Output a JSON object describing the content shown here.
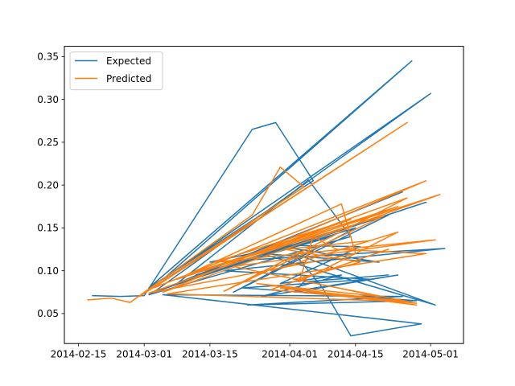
{
  "chart_data": {
    "type": "line",
    "title": "",
    "xlabel": "",
    "ylabel": "",
    "x_axis_type": "date",
    "xlim": [
      "2014-02-12",
      "2014-05-08"
    ],
    "ylim": [
      0.015,
      0.362
    ],
    "x_ticks": [
      "2014-02-15",
      "2014-03-01",
      "2014-03-15",
      "2014-04-01",
      "2014-04-15",
      "2014-05-01"
    ],
    "y_ticks": [
      0.05,
      0.1,
      0.15,
      0.2,
      0.25,
      0.3,
      0.35
    ],
    "y_tick_labels": [
      "0.05",
      "0.10",
      "0.15",
      "0.20",
      "0.25",
      "0.30",
      "0.35"
    ],
    "grid": false,
    "legend": {
      "position": "upper-left"
    },
    "series": [
      {
        "name": "Expected",
        "color": "#1f77b4",
        "points": [
          [
            "2014-02-18",
            0.071
          ],
          [
            "2014-02-24",
            0.07
          ],
          [
            "2014-03-01",
            0.071
          ],
          [
            "2014-03-24",
            0.265
          ],
          [
            "2014-03-29",
            0.273
          ],
          [
            "2014-04-06",
            0.205
          ],
          [
            "2014-03-02",
            0.08
          ],
          [
            "2014-04-27",
            0.345
          ],
          [
            "2014-03-05",
            0.09
          ],
          [
            "2014-05-01",
            0.307
          ],
          [
            "2014-03-03",
            0.075
          ],
          [
            "2014-04-30",
            0.18
          ],
          [
            "2014-03-08",
            0.085
          ],
          [
            "2014-04-05",
            0.206
          ],
          [
            "2014-04-14",
            0.14
          ],
          [
            "2014-03-02",
            0.072
          ],
          [
            "2014-04-25",
            0.192
          ],
          [
            "2014-03-10",
            0.09
          ],
          [
            "2014-04-15",
            0.15
          ],
          [
            "2014-03-20",
            0.075
          ],
          [
            "2014-04-22",
            0.165
          ],
          [
            "2014-03-12",
            0.095
          ],
          [
            "2014-04-10",
            0.14
          ],
          [
            "2014-03-15",
            0.11
          ],
          [
            "2014-05-04",
            0.126
          ],
          [
            "2014-03-18",
            0.1
          ],
          [
            "2014-04-18",
            0.09
          ],
          [
            "2014-03-22",
            0.08
          ],
          [
            "2014-04-28",
            0.065
          ],
          [
            "2014-03-23",
            0.06
          ],
          [
            "2014-04-25",
            0.07
          ],
          [
            "2014-03-05",
            0.072
          ],
          [
            "2014-04-29",
            0.038
          ],
          [
            "2014-04-14",
            0.024
          ],
          [
            "2014-04-08",
            0.08
          ],
          [
            "2014-04-02",
            0.12
          ],
          [
            "2014-05-02",
            0.06
          ],
          [
            "2014-03-26",
            0.12
          ],
          [
            "2014-04-20",
            0.11
          ],
          [
            "2014-03-28",
            0.13
          ],
          [
            "2014-04-16",
            0.128
          ],
          [
            "2014-03-30",
            0.085
          ],
          [
            "2014-04-12",
            0.095
          ],
          [
            "2014-03-26",
            0.07
          ],
          [
            "2014-04-24",
            0.095
          ],
          [
            "2014-04-02",
            0.075
          ],
          [
            "2014-04-04",
            0.087
          ],
          [
            "2014-04-22",
            0.095
          ]
        ]
      },
      {
        "name": "Predicted",
        "color": "#ff7f0e",
        "points": [
          [
            "2014-02-17",
            0.066
          ],
          [
            "2014-02-22",
            0.068
          ],
          [
            "2014-02-26",
            0.063
          ],
          [
            "2014-03-24",
            0.165
          ],
          [
            "2014-03-30",
            0.221
          ],
          [
            "2014-04-04",
            0.198
          ],
          [
            "2014-02-28",
            0.07
          ],
          [
            "2014-04-26",
            0.273
          ],
          [
            "2014-03-03",
            0.08
          ],
          [
            "2014-04-30",
            0.205
          ],
          [
            "2014-03-05",
            0.075
          ],
          [
            "2014-05-03",
            0.189
          ],
          [
            "2014-03-08",
            0.09
          ],
          [
            "2014-04-12",
            0.178
          ],
          [
            "2014-04-15",
            0.12
          ],
          [
            "2014-03-02",
            0.074
          ],
          [
            "2014-04-24",
            0.175
          ],
          [
            "2014-03-10",
            0.095
          ],
          [
            "2014-04-21",
            0.164
          ],
          [
            "2014-03-18",
            0.076
          ],
          [
            "2014-04-26",
            0.185
          ],
          [
            "2014-03-14",
            0.1
          ],
          [
            "2014-04-14",
            0.16
          ],
          [
            "2014-03-16",
            0.11
          ],
          [
            "2014-05-02",
            0.136
          ],
          [
            "2014-03-20",
            0.105
          ],
          [
            "2014-04-20",
            0.07
          ],
          [
            "2014-03-25",
            0.085
          ],
          [
            "2014-04-28",
            0.06
          ],
          [
            "2014-03-30",
            0.08
          ],
          [
            "2014-04-26",
            0.064
          ],
          [
            "2014-03-06",
            0.073
          ],
          [
            "2014-04-30",
            0.12
          ],
          [
            "2014-04-11",
            0.125
          ],
          [
            "2014-04-06",
            0.14
          ],
          [
            "2014-04-03",
            0.087
          ],
          [
            "2014-04-24",
            0.145
          ],
          [
            "2014-03-28",
            0.1
          ],
          [
            "2014-04-18",
            0.135
          ],
          [
            "2014-03-31",
            0.125
          ],
          [
            "2014-04-16",
            0.11
          ],
          [
            "2014-04-02",
            0.09
          ],
          [
            "2014-04-28",
            0.062
          ],
          [
            "2014-03-28",
            0.078
          ],
          [
            "2014-04-22",
            0.125
          ]
        ]
      }
    ]
  }
}
